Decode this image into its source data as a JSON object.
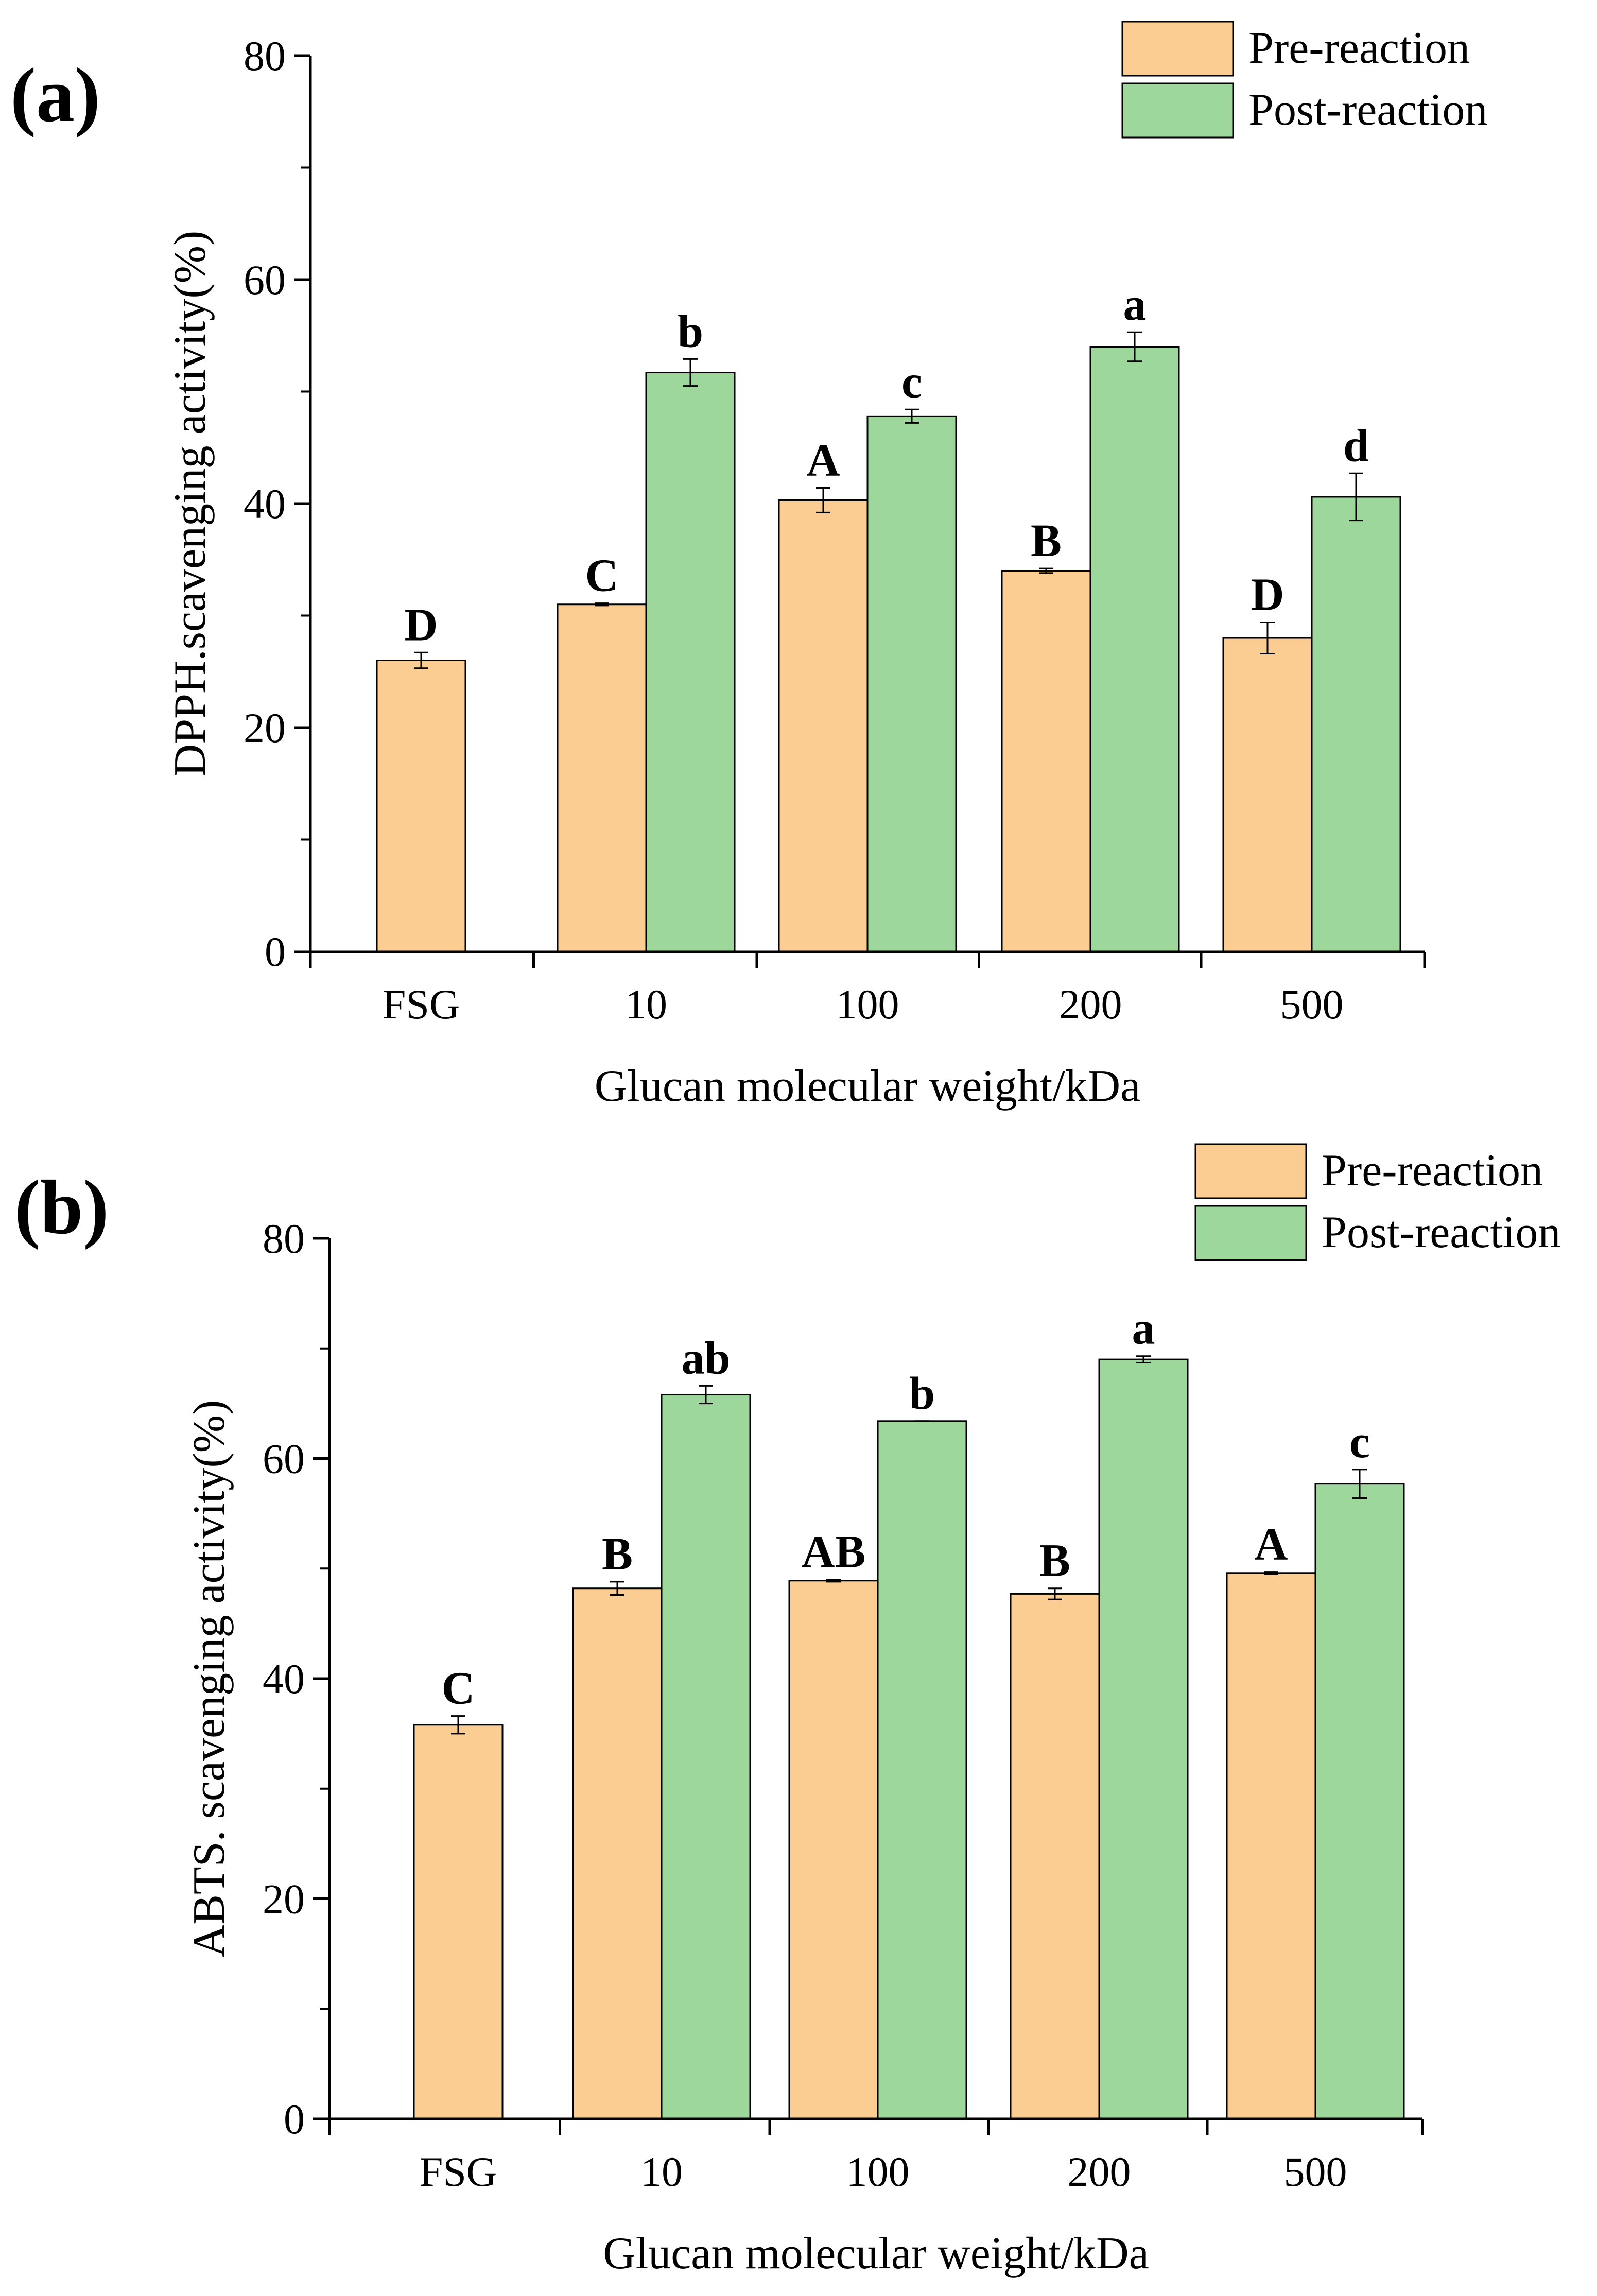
{
  "colors": {
    "pre": "#FCCD93",
    "post": "#9DD79B",
    "axis": "#000000"
  },
  "chart_data": [
    {
      "type": "bar",
      "panel_label": "(a)",
      "categories": [
        "FSG",
        "10",
        "100",
        "200",
        "500"
      ],
      "xlabel": "Glucan molecular weight/kDa",
      "ylabel": "DPPH.scavenging activity(%)",
      "ylim": [
        0,
        80
      ],
      "yticks": [
        "0",
        "20",
        "40",
        "60",
        "80"
      ],
      "legend_position": "top-right",
      "series": [
        {
          "name": "Pre-reaction",
          "values": [
            26.0,
            31.0,
            40.3,
            34.0,
            28.0
          ],
          "errors": [
            0.7,
            0.1,
            1.1,
            0.2,
            1.4
          ],
          "letters": [
            "D",
            "C",
            "A",
            "B",
            "D"
          ]
        },
        {
          "name": "Post-reaction",
          "values": [
            null,
            51.7,
            47.8,
            54.0,
            40.6
          ],
          "errors": [
            null,
            1.2,
            0.6,
            1.3,
            2.1
          ],
          "letters": [
            "",
            "b",
            "c",
            "a",
            "d"
          ]
        }
      ]
    },
    {
      "type": "bar",
      "panel_label": "(b)",
      "categories": [
        "FSG",
        "10",
        "100",
        "200",
        "500"
      ],
      "xlabel": "Glucan molecular weight/kDa",
      "ylabel": "ABTS. scavenging activity(%)",
      "ylim": [
        0,
        80
      ],
      "yticks": [
        "0",
        "20",
        "40",
        "60",
        "80"
      ],
      "legend_position": "top-right",
      "series": [
        {
          "name": "Pre-reaction",
          "values": [
            35.8,
            48.2,
            48.9,
            47.7,
            49.6
          ],
          "errors": [
            0.8,
            0.6,
            0.1,
            0.5,
            0.1
          ],
          "letters": [
            "C",
            "B",
            "AB",
            "B",
            "A"
          ]
        },
        {
          "name": "Post-reaction",
          "values": [
            null,
            65.8,
            63.4,
            69.0,
            57.7
          ],
          "errors": [
            null,
            0.8,
            0.0,
            0.3,
            1.3
          ],
          "letters": [
            "",
            "ab",
            "b",
            "a",
            "c"
          ]
        }
      ]
    }
  ]
}
